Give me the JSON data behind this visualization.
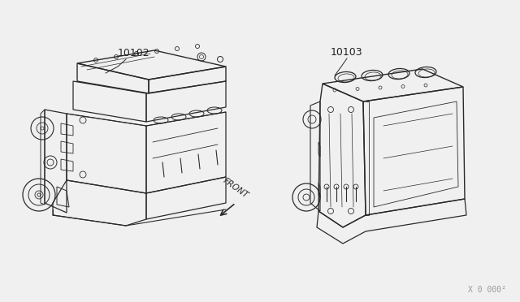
{
  "background_color": "#f0f0f0",
  "line_color": "#2a2a2a",
  "label_color": "#222222",
  "part1_label": "10102",
  "part2_label": "10103",
  "front_label": "FRONT",
  "ref_label": "X 0 000²",
  "figsize": [
    6.4,
    3.72
  ],
  "dpi": 100,
  "image_bg": "#f0f0f0"
}
